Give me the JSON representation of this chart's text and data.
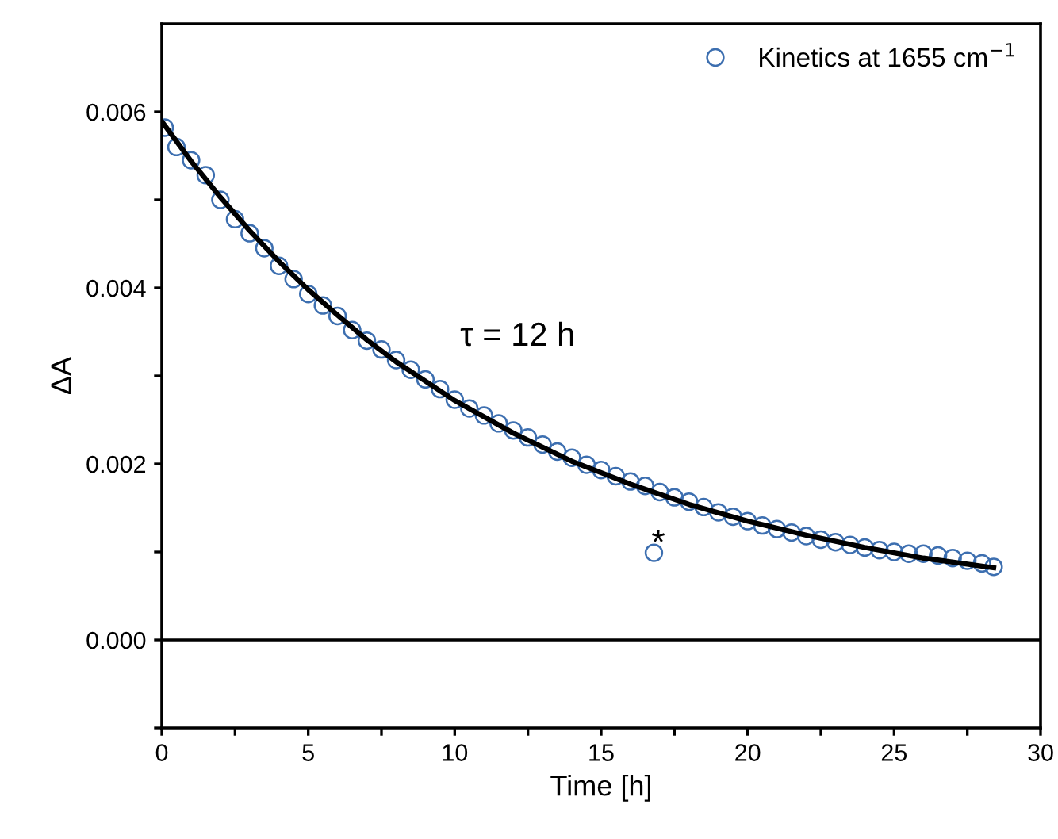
{
  "chart_data": {
    "type": "scatter",
    "xlabel": "Time [h]",
    "ylabel": "ΔA",
    "xlim": [
      0,
      30
    ],
    "ylim": [
      -0.001,
      0.007
    ],
    "xticks": [
      0,
      {
        "value": 2.5,
        "label": null
      },
      5,
      {
        "value": 7.5,
        "label": null
      },
      10,
      {
        "value": 12.5,
        "label": null
      },
      15,
      {
        "value": 17.5,
        "label": null
      },
      20,
      {
        "value": 22.5,
        "label": null
      },
      25,
      {
        "value": 27.5,
        "label": null
      },
      30
    ],
    "yticks": [
      {
        "value": -0.001,
        "label": null
      },
      {
        "value": 0,
        "label": "0.000"
      },
      {
        "value": 0.001,
        "label": null
      },
      {
        "value": 0.002,
        "label": "0.002"
      },
      {
        "value": 0.003,
        "label": null
      },
      {
        "value": 0.004,
        "label": "0.004"
      },
      {
        "value": 0.005,
        "label": null
      },
      {
        "value": 0.006,
        "label": "0.006"
      }
    ],
    "grid": false,
    "legend": "top right",
    "marker": "circle",
    "ref_lines": [
      {
        "axis": "y",
        "value": 0,
        "color": "#000000"
      }
    ],
    "annotations": [
      "τ = 12 h",
      "*"
    ],
    "series": [
      {
        "name": "Kinetics at 1655 cm$^{−1}$",
        "color": "#3d6fb0",
        "x": [
          0.1,
          0.5,
          1,
          1.5,
          2,
          2.5,
          3,
          3.5,
          4,
          4.5,
          5,
          5.5,
          6,
          6.5,
          7,
          7.5,
          8,
          8.5,
          9,
          9.5,
          10,
          10.5,
          11,
          11.5,
          12,
          12.5,
          13,
          13.5,
          14,
          14.5,
          15,
          15.5,
          16,
          16.5,
          16.8,
          17,
          17.5,
          18,
          18.5,
          19,
          19.5,
          20,
          20.5,
          21,
          21.5,
          22,
          22.5,
          23,
          23.5,
          24,
          24.5,
          25,
          25.5,
          26,
          26.5,
          27,
          27.5,
          28,
          28.4
        ],
        "values": [
          0.00582,
          0.0056,
          0.00545,
          0.00528,
          0.005,
          0.00478,
          0.00462,
          0.00445,
          0.00425,
          0.0041,
          0.00393,
          0.0038,
          0.00368,
          0.00352,
          0.0034,
          0.0033,
          0.00318,
          0.00307,
          0.00296,
          0.00285,
          0.00273,
          0.00263,
          0.00255,
          0.00246,
          0.00238,
          0.0023,
          0.00222,
          0.00214,
          0.00207,
          0.00199,
          0.00193,
          0.00186,
          0.0018,
          0.00175,
          0.00099,
          0.00168,
          0.00162,
          0.00157,
          0.00151,
          0.00145,
          0.0014,
          0.00135,
          0.0013,
          0.00126,
          0.00122,
          0.00118,
          0.00114,
          0.00111,
          0.00108,
          0.00105,
          0.00102,
          0.001,
          0.00098,
          0.00098,
          0.00096,
          0.00093,
          0.0009,
          0.00087,
          0.00083
        ]
      },
      {
        "type": "line",
        "color": "#000000",
        "marker": "none",
        "x": [
          0,
          1,
          2,
          3,
          4,
          5,
          6,
          7,
          8,
          9,
          10,
          12,
          14,
          16,
          18,
          20,
          22,
          24,
          26,
          28.4
        ],
        "values": [
          0.00589,
          0.00544,
          0.00503,
          0.00465,
          0.0043,
          0.00398,
          0.00369,
          0.00341,
          0.00316,
          0.00294,
          0.00272,
          0.00235,
          0.00203,
          0.00177,
          0.00154,
          0.00135,
          0.00119,
          0.00105,
          0.00093,
          0.00082
        ]
      }
    ]
  }
}
